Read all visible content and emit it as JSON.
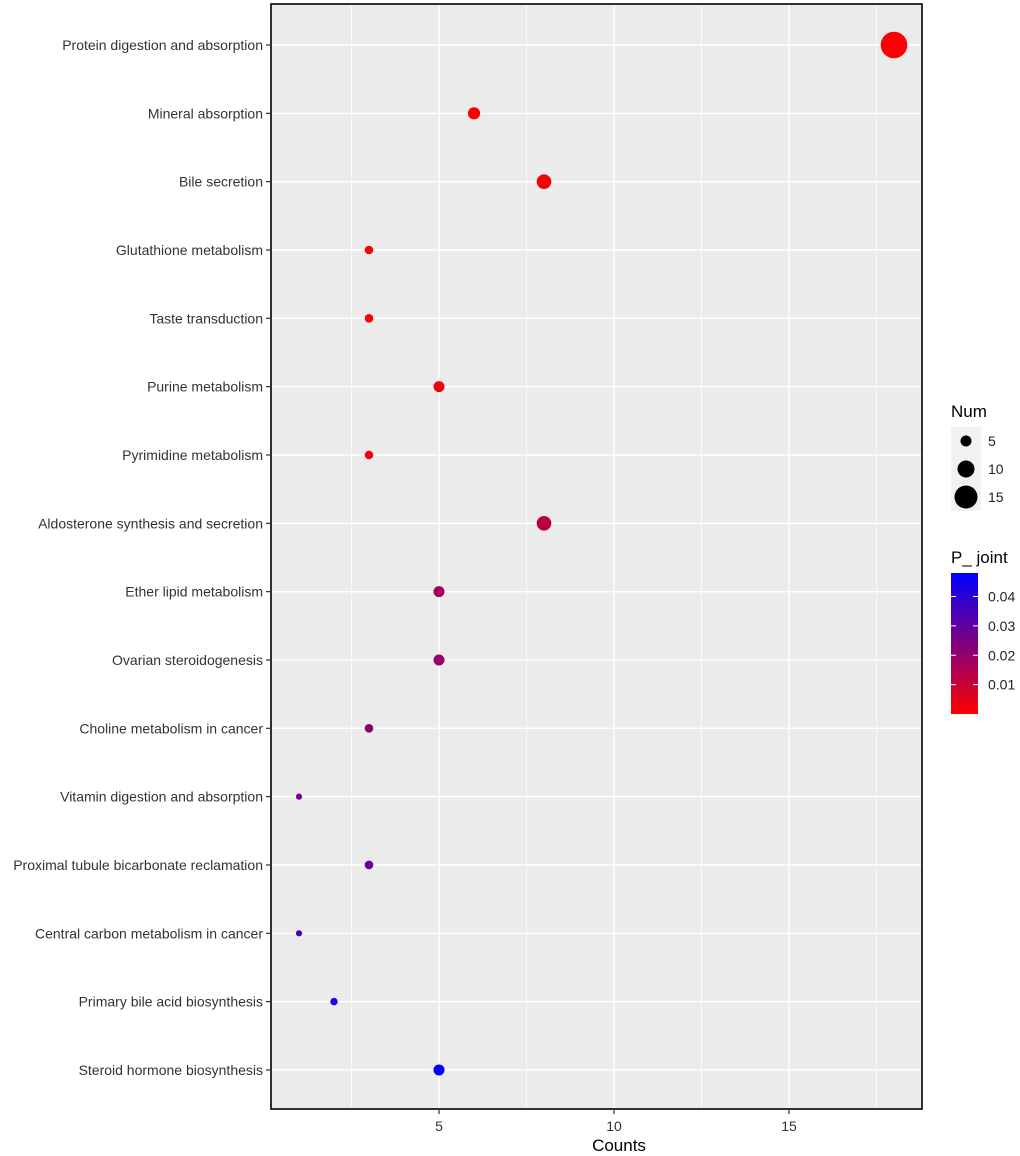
{
  "chart_data": {
    "type": "scatter",
    "title": "",
    "xlabel": "Counts",
    "ylabel": "",
    "xlim": [
      0.2,
      18.8
    ],
    "xticks": [
      5,
      10,
      15
    ],
    "grid": true,
    "categories": [
      "Protein digestion and absorption",
      "Mineral absorption",
      "Bile secretion",
      "Glutathione metabolism",
      "Taste transduction",
      "Purine metabolism",
      "Pyrimidine metabolism",
      "Aldosterone synthesis and secretion",
      "Ether lipid metabolism",
      "Ovarian steroidogenesis",
      "Choline metabolism in cancer",
      "Vitamin digestion and absorption",
      "Proximal tubule bicarbonate reclamation",
      "Central carbon metabolism in cancer",
      "Primary bile acid biosynthesis",
      "Steroid hormone biosynthesis"
    ],
    "counts": [
      18,
      6,
      8,
      3,
      3,
      5,
      3,
      8,
      5,
      5,
      3,
      1,
      3,
      1,
      2,
      5
    ],
    "p_joint": [
      0.0005,
      0.001,
      0.001,
      0.001,
      0.0015,
      0.002,
      0.002,
      0.012,
      0.017,
      0.02,
      0.022,
      0.026,
      0.029,
      0.034,
      0.042,
      0.048
    ],
    "size_legend": {
      "title": "Num",
      "values": [
        5,
        10,
        15
      ]
    },
    "color_legend": {
      "title": "P_ joint",
      "range": [
        0,
        0.048
      ],
      "ticks": [
        0.01,
        0.02,
        0.03,
        0.04
      ],
      "low_color": "#ff0000",
      "high_color": "#0000ff"
    }
  }
}
